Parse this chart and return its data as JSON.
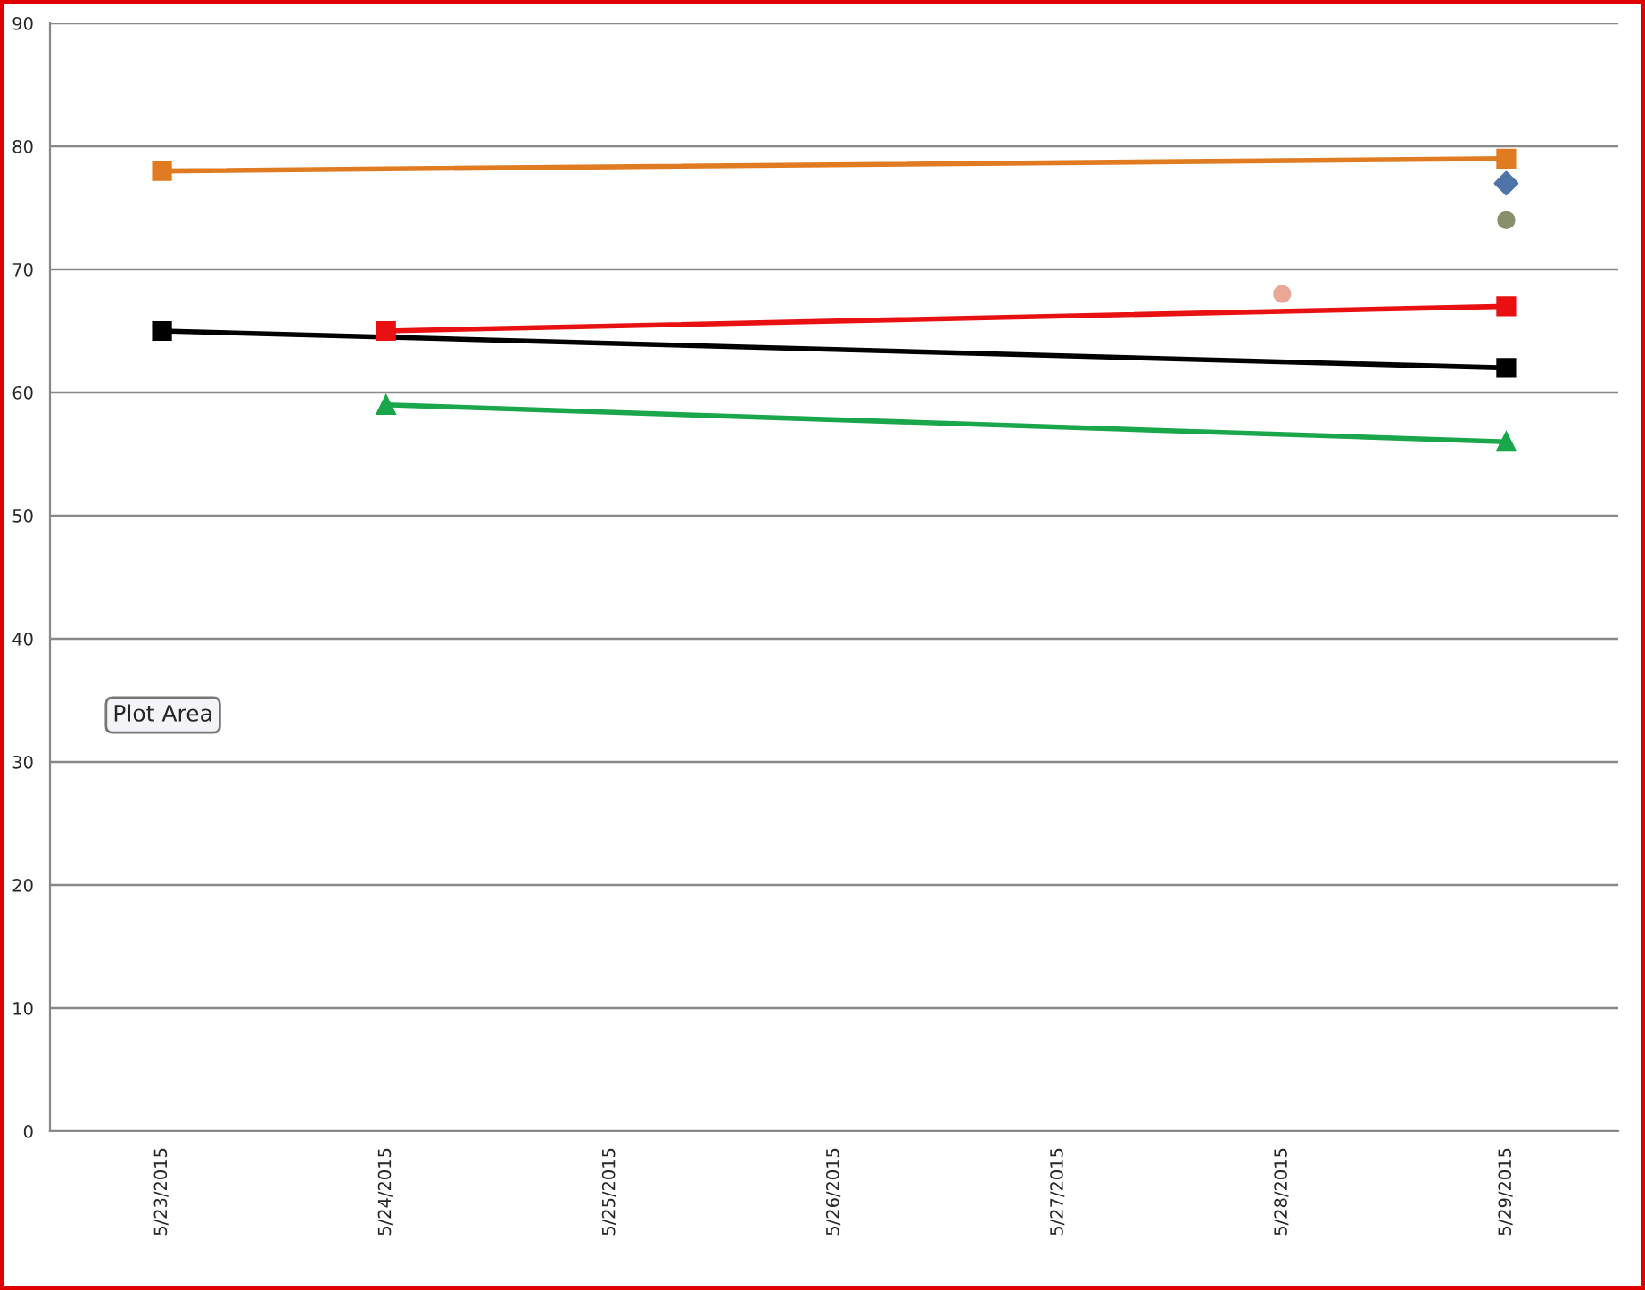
{
  "chart_data": {
    "type": "line",
    "categories": [
      "5/23/2015",
      "5/24/2015",
      "5/25/2015",
      "5/26/2015",
      "5/27/2015",
      "5/28/2015",
      "5/29/2015"
    ],
    "series": [
      {
        "color": "#e07b22",
        "marker": "square",
        "values": [
          78,
          null,
          null,
          null,
          null,
          null,
          79
        ]
      },
      {
        "color": "#000000",
        "marker": "square",
        "values": [
          65,
          null,
          null,
          null,
          null,
          null,
          62
        ]
      },
      {
        "color": "#e81010",
        "marker": "square",
        "values": [
          null,
          65,
          null,
          null,
          null,
          null,
          67
        ]
      },
      {
        "color": "#1aa64a",
        "marker": "triangle",
        "values": [
          null,
          59,
          null,
          null,
          null,
          null,
          56
        ]
      },
      {
        "type": "scatter",
        "color": "#4f74a8",
        "marker": "diamond",
        "values": [
          null,
          null,
          null,
          null,
          null,
          null,
          77
        ]
      },
      {
        "type": "scatter",
        "color": "#87906a",
        "marker": "circle",
        "values": [
          null,
          null,
          null,
          null,
          null,
          null,
          74
        ]
      },
      {
        "type": "scatter",
        "color": "#eba796",
        "marker": "circle",
        "values": [
          null,
          null,
          null,
          null,
          null,
          68,
          null
        ]
      }
    ],
    "ylim": [
      0,
      90
    ],
    "yticks": [
      0,
      10,
      20,
      30,
      40,
      50,
      60,
      70,
      80,
      90
    ],
    "grid": "y",
    "annotations": [
      "Plot Area"
    ]
  }
}
